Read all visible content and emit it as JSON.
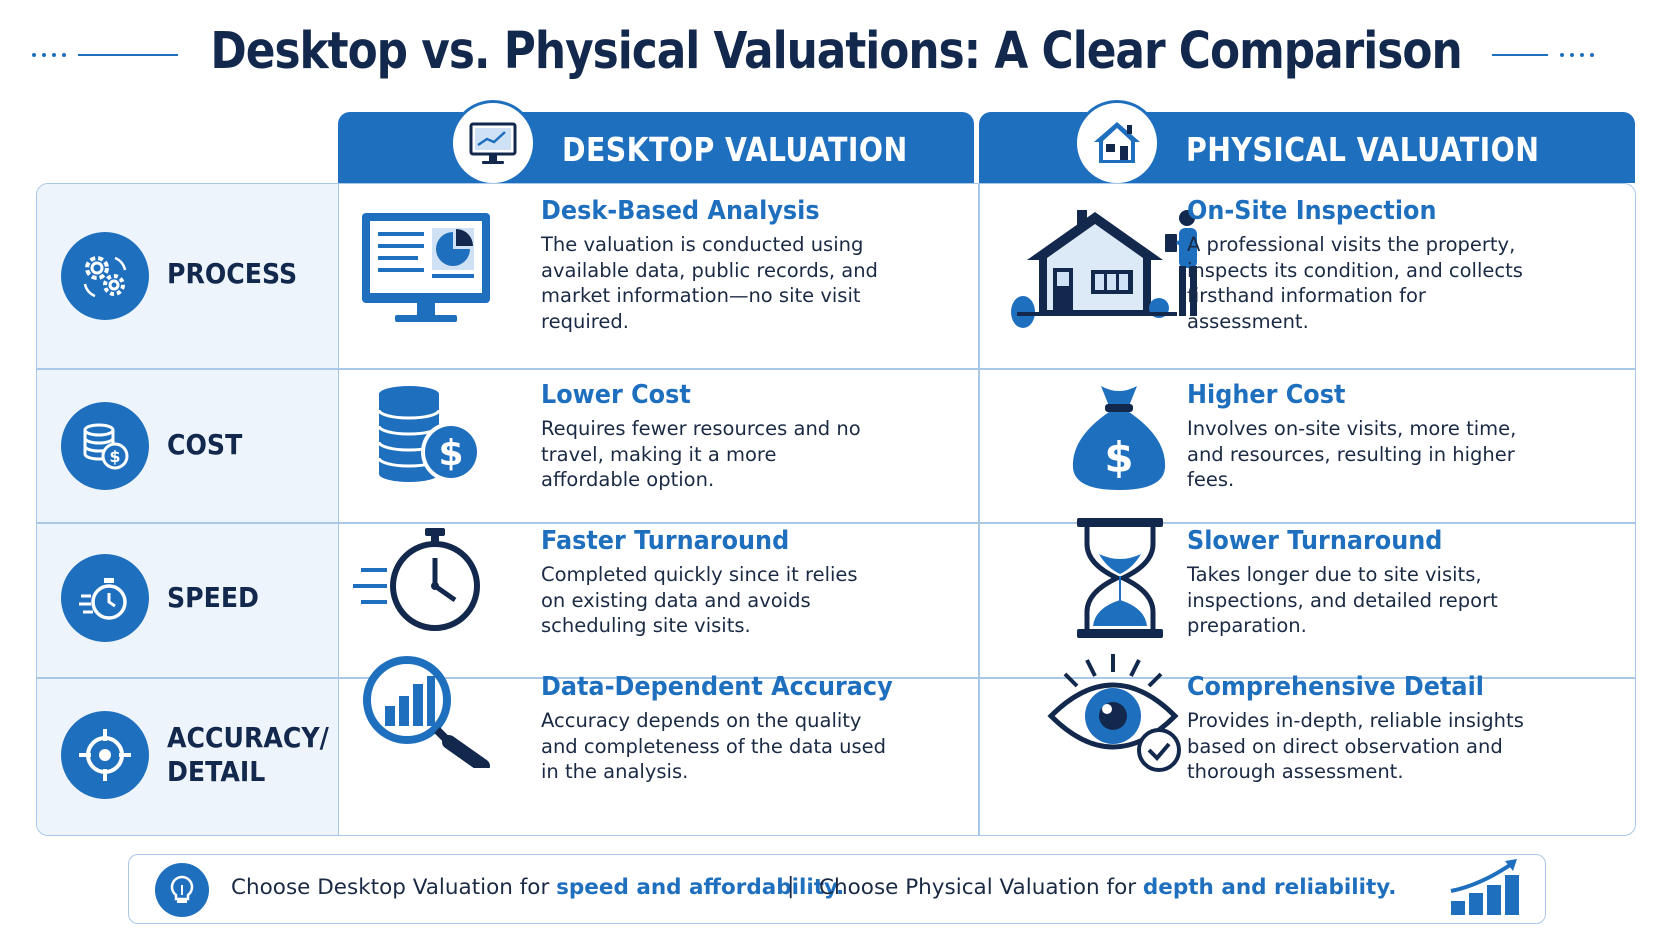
{
  "title": "Desktop vs. Physical Valuations: A Clear Comparison",
  "columns": {
    "desktop": {
      "label": "DESKTOP VALUATION",
      "icon": "monitor-chart-icon"
    },
    "physical": {
      "label": "PHYSICAL VALUATION",
      "icon": "house-icon"
    }
  },
  "rows": [
    {
      "label": "PROCESS",
      "icon": "gears-icon",
      "desktop": {
        "title": "Desk-Based Analysis",
        "body": "The valuation is conducted using available data, public records, and market information—no site visit required.",
        "icon": "monitor-report-icon"
      },
      "physical": {
        "title": "On-Site Inspection",
        "body": "A professional visits the property, inspects its condition, and collects firsthand information for assessment.",
        "icon": "house-inspector-icon"
      }
    },
    {
      "label": "COST",
      "icon": "coins-dollar-icon",
      "desktop": {
        "title": "Lower Cost",
        "body": "Requires fewer resources and no travel, making it a more affordable option.",
        "icon": "coin-stack-dollar-icon"
      },
      "physical": {
        "title": "Higher Cost",
        "body": "Involves on-site visits, more time, and resources, resulting in higher fees.",
        "icon": "money-bag-icon"
      }
    },
    {
      "label": "SPEED",
      "icon": "stopwatch-icon",
      "desktop": {
        "title": "Faster Turnaround",
        "body": "Completed quickly since it relies on existing data and avoids scheduling site visits.",
        "icon": "fast-stopwatch-icon"
      },
      "physical": {
        "title": "Slower Turnaround",
        "body": "Takes longer due to site visits, inspections, and detailed report preparation.",
        "icon": "hourglass-icon"
      }
    },
    {
      "label_line1": "ACCURACY/",
      "label_line2": "DETAIL",
      "icon": "target-icon",
      "desktop": {
        "title": "Data-Dependent Accuracy",
        "body": "Accuracy depends on the quality and completeness of the data used in the analysis.",
        "icon": "magnifier-chart-icon"
      },
      "physical": {
        "title": "Comprehensive Detail",
        "body": "Provides in-depth, reliable insights based on direct observation and thorough assessment.",
        "icon": "eye-check-icon"
      }
    }
  ],
  "footer": {
    "icon": "lightbulb-icon",
    "left_prefix": "Choose Desktop Valuation for ",
    "left_emphasis": "speed and affordability.",
    "separator": "|",
    "right_prefix": "Choose Physical Valuation for ",
    "right_emphasis": "depth and reliability.",
    "end_icon": "growth-chart-icon"
  },
  "colors": {
    "accent": "#1f6fbf",
    "navy": "#13284d",
    "border": "#a9c8e8",
    "label_bg": "#eef4fb"
  }
}
